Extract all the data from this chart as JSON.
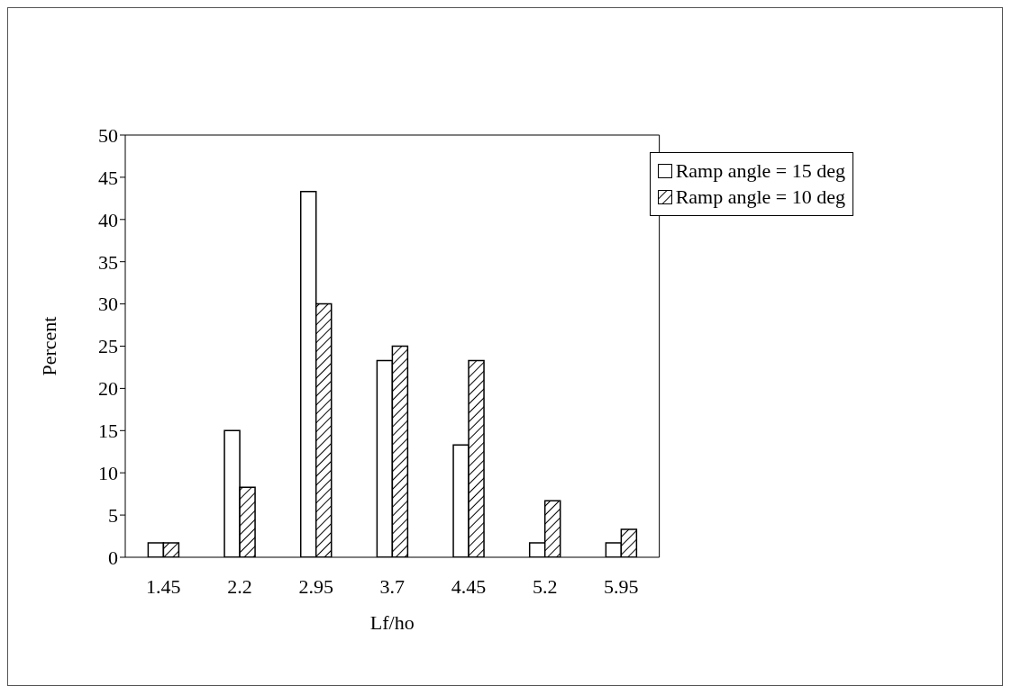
{
  "chart_data": {
    "type": "bar",
    "xlabel": "Lf/ho",
    "ylabel": "Percent",
    "categories": [
      "1.45",
      "2.2",
      "2.95",
      "3.7",
      "4.45",
      "5.2",
      "5.95"
    ],
    "series": [
      {
        "name": "Ramp angle = 15 deg",
        "color": "#ffffff",
        "values": [
          1.7,
          15,
          43.3,
          23.3,
          13.3,
          1.7,
          1.7
        ]
      },
      {
        "name": "Ramp angle = 10 deg",
        "color": "#000000",
        "values": [
          1.7,
          8.3,
          30,
          25,
          23.3,
          6.7,
          3.3
        ]
      }
    ],
    "ylim": [
      0,
      50
    ],
    "yticks": [
      0,
      5,
      10,
      15,
      20,
      25,
      30,
      35,
      40,
      45,
      50
    ],
    "grid": false,
    "legend": "top right"
  }
}
